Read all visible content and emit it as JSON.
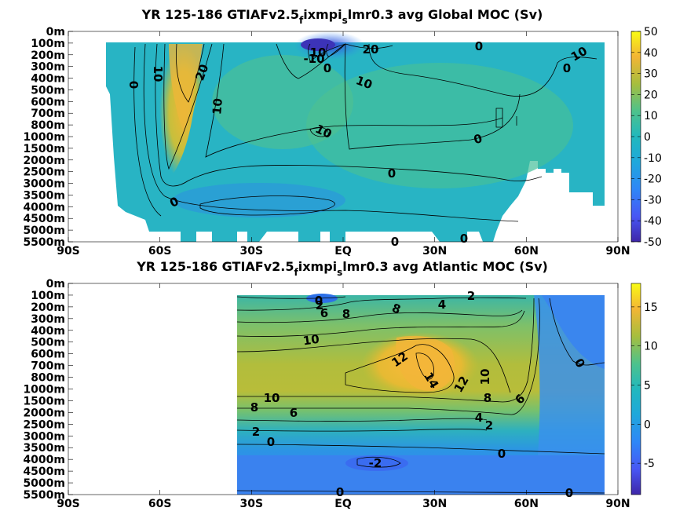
{
  "chart_data": [
    {
      "type": "heatmap",
      "title_parts": [
        "YR 125-186 GTIAFv2.5",
        "f",
        "ixmpi",
        "s",
        "lmr0.3 avg  Global MOC (Sv)"
      ],
      "x_ticks": [
        "90S",
        "60S",
        "30S",
        "EQ",
        "30N",
        "60N",
        "90N"
      ],
      "x_values": [
        -90,
        -60,
        -30,
        0,
        30,
        60,
        90
      ],
      "y_ticks": [
        "0m",
        "100m",
        "200m",
        "300m",
        "400m",
        "500m",
        "600m",
        "700m",
        "800m",
        "1000m",
        "1500m",
        "2000m",
        "2500m",
        "3000m",
        "3500m",
        "4000m",
        "4500m",
        "5000m",
        "5500m"
      ],
      "colorbar": {
        "range": [
          -50,
          50
        ],
        "ticks": [
          "50",
          "40",
          "30",
          "20",
          "10",
          "0",
          "-10",
          "-20",
          "-30",
          "-40",
          "-50"
        ]
      },
      "contour_labels": [
        "0",
        "10",
        "20",
        "10",
        "10",
        "0",
        "-10",
        "20",
        "10",
        "10",
        "0",
        "0",
        "0",
        "10",
        "0",
        "0",
        "0",
        "0"
      ]
    },
    {
      "type": "heatmap",
      "title_parts": [
        "YR 125-186 GTIAFv2.5",
        "f",
        "ixmpi",
        "s",
        "lmr0.3 avg  Atlantic MOC (Sv)"
      ],
      "x_ticks": [
        "90S",
        "60S",
        "30S",
        "EQ",
        "30N",
        "60N",
        "90N"
      ],
      "x_values": [
        -90,
        -60,
        -30,
        0,
        30,
        60,
        90
      ],
      "y_ticks": [
        "0m",
        "100m",
        "200m",
        "300m",
        "400m",
        "500m",
        "600m",
        "700m",
        "800m",
        "1000m",
        "1500m",
        "2000m",
        "2500m",
        "3000m",
        "3500m",
        "4000m",
        "4500m",
        "5000m",
        "5500m"
      ],
      "colorbar": {
        "range": [
          -9,
          18
        ],
        "ticks": [
          "15",
          "10",
          "5",
          "0",
          "-5"
        ]
      },
      "contour_labels": [
        "0",
        "2",
        "6",
        "8",
        "8",
        "4",
        "2",
        "10",
        "12",
        "14",
        "12",
        "10",
        "10",
        "8",
        "6",
        "8",
        "6",
        "4",
        "2",
        "2",
        "0",
        "-2",
        "0",
        "0",
        "0",
        "0"
      ]
    }
  ]
}
